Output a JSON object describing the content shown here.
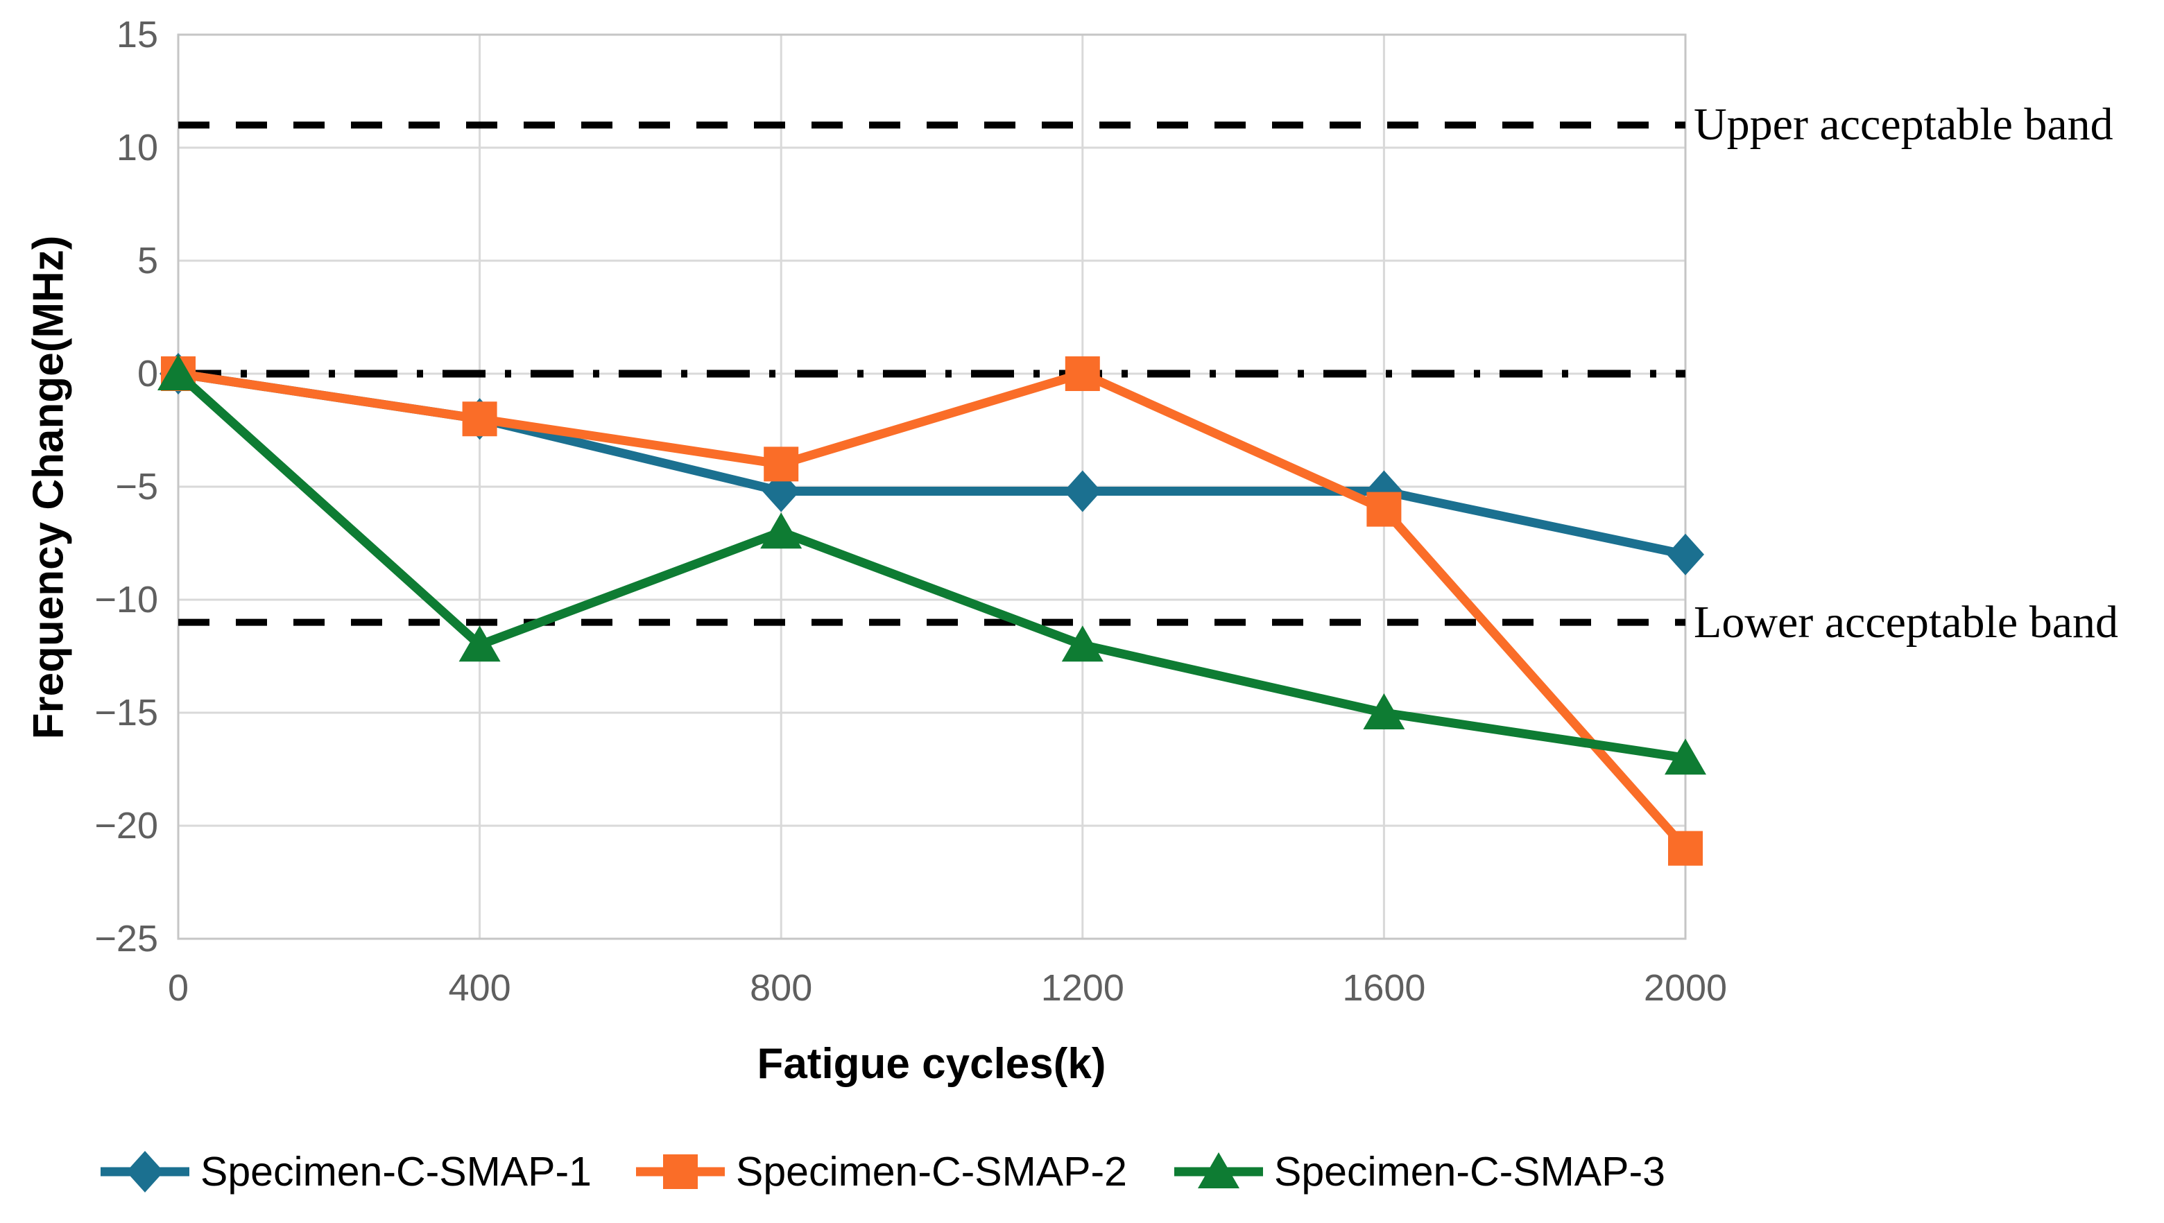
{
  "chart_data": {
    "type": "line",
    "title": "",
    "xlabel": "Fatigue cycles(k)",
    "ylabel": "Frequency Change(MHz)",
    "xlim": [
      0,
      2000
    ],
    "ylim": [
      -25,
      15
    ],
    "x_ticks": [
      0,
      400,
      800,
      1200,
      1600,
      2000
    ],
    "x_tick_labels": [
      "0",
      "400",
      "800",
      "1200",
      "1600",
      "2000"
    ],
    "y_ticks": [
      15,
      10,
      5,
      0,
      -5,
      -10,
      -15,
      -20,
      -25
    ],
    "y_tick_labels": [
      "15",
      "10",
      "5",
      "0",
      "−5",
      "−10",
      "−15",
      "−20",
      "−25"
    ],
    "grid": true,
    "legend_position": "bottom",
    "x": [
      0,
      400,
      800,
      1200,
      1600,
      2000
    ],
    "series": [
      {
        "name": "Specimen-C-SMAP-1",
        "marker": "diamond",
        "color": "#1B7090",
        "values": [
          0,
          -2,
          -5.2,
          -5.2,
          -5.2,
          -8
        ]
      },
      {
        "name": "Specimen-C-SMAP-2",
        "marker": "square",
        "color": "#FA6D28",
        "values": [
          0,
          -2,
          -4,
          0,
          -6,
          -21
        ]
      },
      {
        "name": "Specimen-C-SMAP-3",
        "marker": "triangle",
        "color": "#0E7C33",
        "values": [
          0,
          -12,
          -7,
          -12,
          -15,
          -17
        ]
      }
    ],
    "reference_lines": [
      {
        "value": 11,
        "label": "Upper acceptable band",
        "style": "dashed"
      },
      {
        "value": 0,
        "label": "",
        "style": "dash-dot"
      },
      {
        "value": -11,
        "label": "Lower acceptable band",
        "style": "dashed"
      }
    ]
  },
  "colors": {
    "background": "#ffffff",
    "gridline": "#d9d9d9",
    "plot_border": "#c6c6c6",
    "tick_text": "#5f5f5f",
    "reference_line": "#000000"
  }
}
